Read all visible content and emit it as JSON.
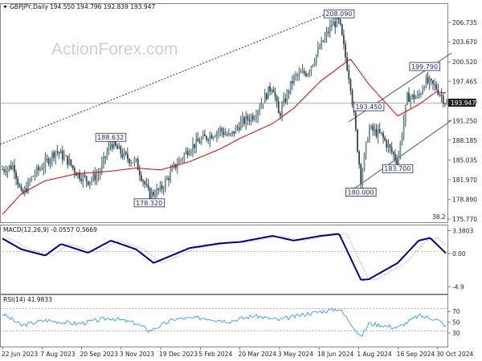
{
  "header": {
    "symbol": "GBPJPY,Daily",
    "ohlc": "194.550 194.796 192.839 193.947"
  },
  "watermark": "ActionForex.com",
  "price_tag": "193.947",
  "chart_data": [
    {
      "type": "candlestick",
      "panel": "price",
      "y_ticks": [
        "206.735",
        "203.670",
        "200.520",
        "197.465",
        "194.340",
        "191.250",
        "188.185",
        "185.035",
        "181.970",
        "178.890",
        "175.770"
      ],
      "y_range": [
        175.77,
        208.5
      ],
      "x_ticks": [
        "22 Jun 2023",
        "7 Aug 2023",
        "20 Sep 2023",
        "3 Nov 2023",
        "19 Dec 2023",
        "5 Feb 2024",
        "20 Mar 2024",
        "3 May 2024",
        "18 Jun 2024",
        "1 Aug 2024",
        "16 Sep 2024",
        "30 Oct 2024"
      ],
      "annotations": [
        {
          "text": "208.090",
          "x": "2024-07-11",
          "y": 208.09
        },
        {
          "text": "199.790",
          "x": "2024-10-17",
          "y": 199.79
        },
        {
          "text": "193.450",
          "x": "2024-08-14",
          "y": 193.45
        },
        {
          "text": "188.632",
          "x": "2023-10-24",
          "y": 188.63
        },
        {
          "text": "183.700",
          "x": "2024-09-16",
          "y": 183.7
        },
        {
          "text": "180.000",
          "x": "2024-08-05",
          "y": 180.0
        },
        {
          "text": "178.320",
          "x": "2023-12-07",
          "y": 178.32
        }
      ],
      "fib_label": "38.2",
      "series": [
        {
          "name": "close",
          "points": [
            [
              "2023-06-22",
              183.6
            ],
            [
              "2023-07-05",
              184.2
            ],
            [
              "2023-07-14",
              179.3
            ],
            [
              "2023-07-28",
              182.8
            ],
            [
              "2023-08-10",
              184.5
            ],
            [
              "2023-08-22",
              186.6
            ],
            [
              "2023-09-05",
              184.9
            ],
            [
              "2023-09-15",
              183.0
            ],
            [
              "2023-09-28",
              181.8
            ],
            [
              "2023-10-10",
              182.8
            ],
            [
              "2023-10-24",
              187.8
            ],
            [
              "2023-11-08",
              185.7
            ],
            [
              "2023-11-22",
              184.6
            ],
            [
              "2023-12-07",
              179.5
            ],
            [
              "2023-12-20",
              180.4
            ],
            [
              "2024-01-05",
              184.0
            ],
            [
              "2024-01-22",
              187.0
            ],
            [
              "2024-02-08",
              188.5
            ],
            [
              "2024-02-26",
              189.8
            ],
            [
              "2024-03-08",
              188.7
            ],
            [
              "2024-03-20",
              190.8
            ],
            [
              "2024-04-05",
              192.2
            ],
            [
              "2024-04-26",
              197.0
            ],
            [
              "2024-05-03",
              192.0
            ],
            [
              "2024-05-20",
              198.0
            ],
            [
              "2024-06-05",
              199.0
            ],
            [
              "2024-06-20",
              203.0
            ],
            [
              "2024-07-03",
              206.5
            ],
            [
              "2024-07-11",
              206.8
            ],
            [
              "2024-07-24",
              197.0
            ],
            [
              "2024-08-05",
              182.0
            ],
            [
              "2024-08-14",
              190.0
            ],
            [
              "2024-08-28",
              189.0
            ],
            [
              "2024-09-16",
              184.8
            ],
            [
              "2024-09-27",
              195.0
            ],
            [
              "2024-10-10",
              195.0
            ],
            [
              "2024-10-17",
              197.5
            ],
            [
              "2024-10-30",
              196.5
            ],
            [
              "2024-11-11",
              193.9
            ]
          ]
        },
        {
          "name": "MA",
          "points": [
            [
              "2023-06-22",
              176.5
            ],
            [
              "2023-07-14",
              179.8
            ],
            [
              "2023-08-10",
              181.8
            ],
            [
              "2023-09-15",
              182.9
            ],
            [
              "2023-10-24",
              183.3
            ],
            [
              "2023-11-22",
              183.8
            ],
            [
              "2023-12-20",
              183.5
            ],
            [
              "2024-01-22",
              184.8
            ],
            [
              "2024-02-26",
              186.8
            ],
            [
              "2024-03-20",
              188.5
            ],
            [
              "2024-04-26",
              190.8
            ],
            [
              "2024-05-20",
              193.2
            ],
            [
              "2024-06-20",
              197.5
            ],
            [
              "2024-07-24",
              201.0
            ],
            [
              "2024-08-14",
              197.0
            ],
            [
              "2024-09-16",
              192.0
            ],
            [
              "2024-10-10",
              193.8
            ],
            [
              "2024-10-30",
              195.8
            ],
            [
              "2024-11-11",
              195.6
            ]
          ]
        }
      ]
    },
    {
      "type": "line",
      "panel": "macd",
      "title": "MACD(12,26,9) -0.0557 0.5669",
      "y_ticks": [
        "3.3803",
        "0.00",
        "-4.9"
      ],
      "y_range": [
        -5.8,
        3.9
      ],
      "series": [
        {
          "name": "macd",
          "points": [
            [
              "2023-06-22",
              2.2
            ],
            [
              "2023-07-14",
              0.6
            ],
            [
              "2023-08-10",
              -0.3
            ],
            [
              "2023-08-28",
              1.4
            ],
            [
              "2023-09-28",
              0.1
            ],
            [
              "2023-10-24",
              1.9
            ],
            [
              "2023-11-22",
              0.6
            ],
            [
              "2023-12-12",
              -1.4
            ],
            [
              "2024-01-22",
              0.8
            ],
            [
              "2024-02-26",
              1.5
            ],
            [
              "2024-03-20",
              1.7
            ],
            [
              "2024-04-26",
              2.6
            ],
            [
              "2024-05-20",
              1.9
            ],
            [
              "2024-06-20",
              2.6
            ],
            [
              "2024-07-11",
              2.9
            ],
            [
              "2024-08-05",
              -3.9
            ],
            [
              "2024-08-14",
              -3.8
            ],
            [
              "2024-09-16",
              -1.4
            ],
            [
              "2024-10-10",
              1.9
            ],
            [
              "2024-10-23",
              2.3
            ],
            [
              "2024-11-11",
              -0.06
            ]
          ]
        }
      ]
    },
    {
      "type": "line",
      "panel": "rsi",
      "title": "RSI(14) 41.9833",
      "y_ticks": [
        "70",
        "50",
        "30"
      ],
      "y_range": [
        5,
        100
      ],
      "series": [
        {
          "name": "rsi",
          "points": [
            [
              "2023-06-22",
              66
            ],
            [
              "2023-07-14",
              44
            ],
            [
              "2023-08-10",
              54
            ],
            [
              "2023-09-15",
              47
            ],
            [
              "2023-10-24",
              58
            ],
            [
              "2023-11-22",
              48
            ],
            [
              "2023-12-07",
              34
            ],
            [
              "2024-01-05",
              56
            ],
            [
              "2024-02-08",
              58
            ],
            [
              "2024-03-08",
              52
            ],
            [
              "2024-04-05",
              62
            ],
            [
              "2024-05-03",
              54
            ],
            [
              "2024-06-05",
              66
            ],
            [
              "2024-07-11",
              75
            ],
            [
              "2024-07-24",
              50
            ],
            [
              "2024-08-05",
              22
            ],
            [
              "2024-08-14",
              48
            ],
            [
              "2024-09-16",
              40
            ],
            [
              "2024-10-10",
              62
            ],
            [
              "2024-10-30",
              56
            ],
            [
              "2024-11-11",
              42
            ]
          ]
        }
      ]
    }
  ]
}
